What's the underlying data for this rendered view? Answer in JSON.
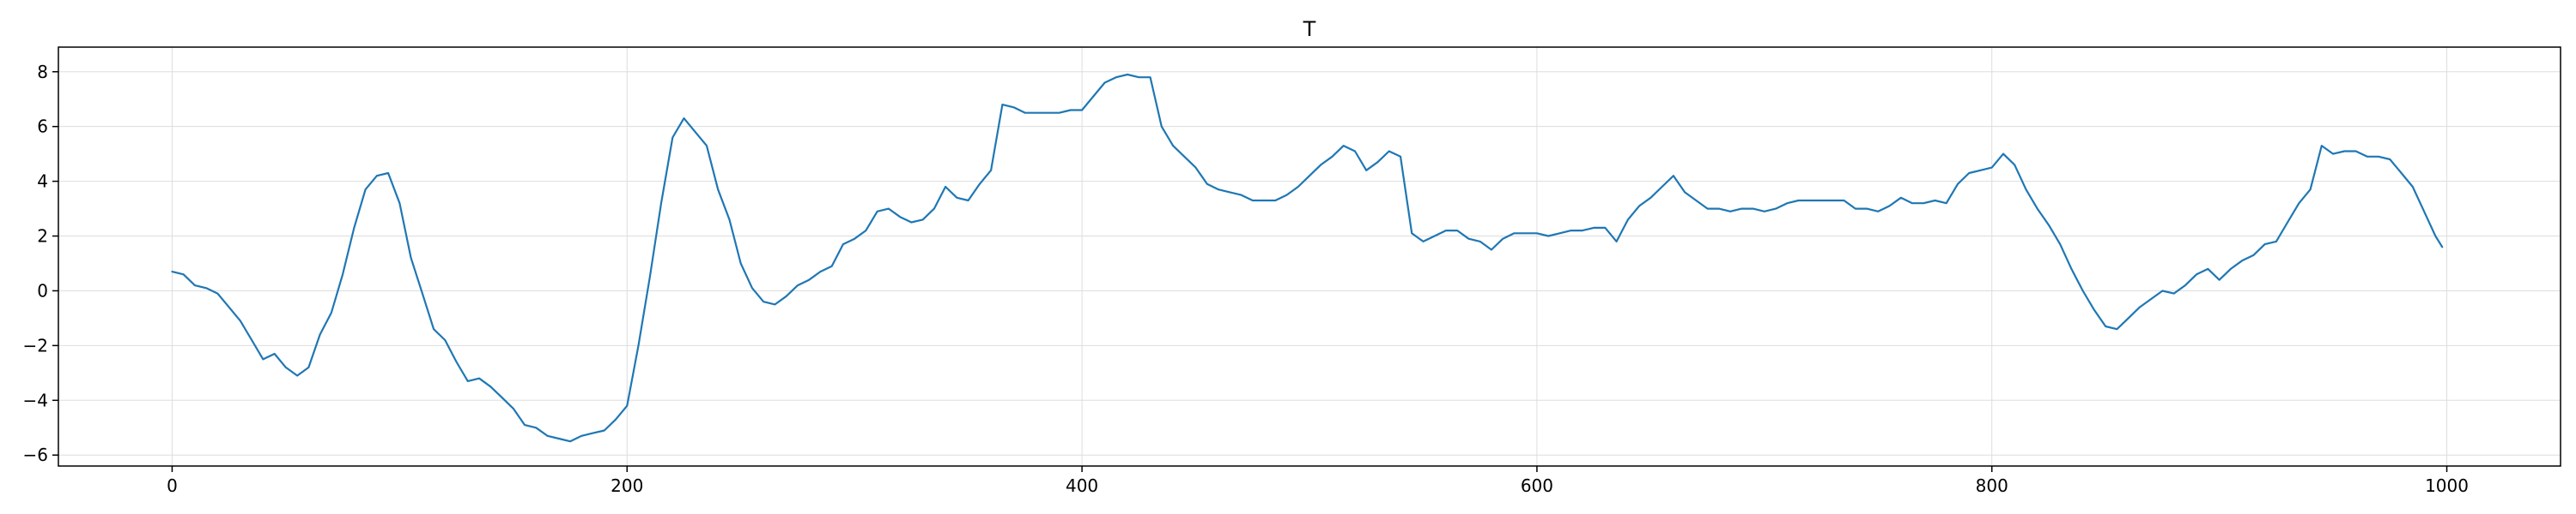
{
  "chart_data": {
    "type": "line",
    "title": "T",
    "xlabel": "",
    "ylabel": "",
    "xlim": [
      -50,
      1050
    ],
    "ylim": [
      -6.4,
      8.9
    ],
    "xticks": [
      0,
      200,
      400,
      600,
      800,
      1000
    ],
    "yticks": [
      -6,
      -4,
      -2,
      0,
      2,
      4,
      6,
      8
    ],
    "grid": true,
    "line_color": "#1f77b4",
    "series": [
      {
        "values": [
          [
            0,
            0.7
          ],
          [
            5,
            0.6
          ],
          [
            10,
            0.2
          ],
          [
            15,
            0.1
          ],
          [
            20,
            -0.1
          ],
          [
            25,
            -0.6
          ],
          [
            30,
            -1.1
          ],
          [
            35,
            -1.8
          ],
          [
            40,
            -2.5
          ],
          [
            45,
            -2.3
          ],
          [
            50,
            -2.8
          ],
          [
            55,
            -3.1
          ],
          [
            60,
            -2.8
          ],
          [
            65,
            -1.6
          ],
          [
            70,
            -0.8
          ],
          [
            75,
            0.6
          ],
          [
            80,
            2.3
          ],
          [
            85,
            3.7
          ],
          [
            90,
            4.2
          ],
          [
            95,
            4.3
          ],
          [
            100,
            3.2
          ],
          [
            105,
            1.2
          ],
          [
            110,
            -0.1
          ],
          [
            115,
            -1.4
          ],
          [
            120,
            -1.8
          ],
          [
            125,
            -2.6
          ],
          [
            130,
            -3.3
          ],
          [
            135,
            -3.2
          ],
          [
            140,
            -3.5
          ],
          [
            145,
            -3.9
          ],
          [
            150,
            -4.3
          ],
          [
            155,
            -4.9
          ],
          [
            160,
            -5.0
          ],
          [
            165,
            -5.3
          ],
          [
            170,
            -5.4
          ],
          [
            175,
            -5.5
          ],
          [
            180,
            -5.3
          ],
          [
            185,
            -5.2
          ],
          [
            190,
            -5.1
          ],
          [
            195,
            -4.7
          ],
          [
            200,
            -4.2
          ],
          [
            205,
            -2.0
          ],
          [
            210,
            0.5
          ],
          [
            215,
            3.2
          ],
          [
            220,
            5.6
          ],
          [
            225,
            6.3
          ],
          [
            230,
            5.8
          ],
          [
            235,
            5.3
          ],
          [
            240,
            3.7
          ],
          [
            245,
            2.6
          ],
          [
            250,
            1.0
          ],
          [
            255,
            0.1
          ],
          [
            260,
            -0.4
          ],
          [
            265,
            -0.5
          ],
          [
            270,
            -0.2
          ],
          [
            275,
            0.2
          ],
          [
            280,
            0.4
          ],
          [
            285,
            0.7
          ],
          [
            290,
            0.9
          ],
          [
            295,
            1.7
          ],
          [
            300,
            1.9
          ],
          [
            305,
            2.2
          ],
          [
            310,
            2.9
          ],
          [
            315,
            3.0
          ],
          [
            320,
            2.7
          ],
          [
            325,
            2.5
          ],
          [
            330,
            2.6
          ],
          [
            335,
            3.0
          ],
          [
            340,
            3.8
          ],
          [
            345,
            3.4
          ],
          [
            350,
            3.3
          ],
          [
            355,
            3.9
          ],
          [
            360,
            4.4
          ],
          [
            365,
            6.8
          ],
          [
            370,
            6.7
          ],
          [
            375,
            6.5
          ],
          [
            380,
            6.5
          ],
          [
            385,
            6.5
          ],
          [
            390,
            6.5
          ],
          [
            395,
            6.6
          ],
          [
            400,
            6.6
          ],
          [
            405,
            7.1
          ],
          [
            410,
            7.6
          ],
          [
            415,
            7.8
          ],
          [
            420,
            7.9
          ],
          [
            425,
            7.8
          ],
          [
            430,
            7.8
          ],
          [
            435,
            6.0
          ],
          [
            440,
            5.3
          ],
          [
            445,
            4.9
          ],
          [
            450,
            4.5
          ],
          [
            455,
            3.9
          ],
          [
            460,
            3.7
          ],
          [
            465,
            3.6
          ],
          [
            470,
            3.5
          ],
          [
            475,
            3.3
          ],
          [
            480,
            3.3
          ],
          [
            485,
            3.3
          ],
          [
            490,
            3.5
          ],
          [
            495,
            3.8
          ],
          [
            500,
            4.2
          ],
          [
            505,
            4.6
          ],
          [
            510,
            4.9
          ],
          [
            515,
            5.3
          ],
          [
            520,
            5.1
          ],
          [
            525,
            4.4
          ],
          [
            530,
            4.7
          ],
          [
            535,
            5.1
          ],
          [
            540,
            4.9
          ],
          [
            545,
            2.1
          ],
          [
            550,
            1.8
          ],
          [
            555,
            2.0
          ],
          [
            560,
            2.2
          ],
          [
            565,
            2.2
          ],
          [
            570,
            1.9
          ],
          [
            575,
            1.8
          ],
          [
            580,
            1.5
          ],
          [
            585,
            1.9
          ],
          [
            590,
            2.1
          ],
          [
            595,
            2.1
          ],
          [
            600,
            2.1
          ],
          [
            605,
            2.0
          ],
          [
            610,
            2.1
          ],
          [
            615,
            2.2
          ],
          [
            620,
            2.2
          ],
          [
            625,
            2.3
          ],
          [
            630,
            2.3
          ],
          [
            635,
            1.8
          ],
          [
            640,
            2.6
          ],
          [
            645,
            3.1
          ],
          [
            650,
            3.4
          ],
          [
            655,
            3.8
          ],
          [
            660,
            4.2
          ],
          [
            665,
            3.6
          ],
          [
            670,
            3.3
          ],
          [
            675,
            3.0
          ],
          [
            680,
            3.0
          ],
          [
            685,
            2.9
          ],
          [
            690,
            3.0
          ],
          [
            695,
            3.0
          ],
          [
            700,
            2.9
          ],
          [
            705,
            3.0
          ],
          [
            710,
            3.2
          ],
          [
            715,
            3.3
          ],
          [
            720,
            3.3
          ],
          [
            725,
            3.3
          ],
          [
            730,
            3.3
          ],
          [
            735,
            3.3
          ],
          [
            740,
            3.0
          ],
          [
            745,
            3.0
          ],
          [
            750,
            2.9
          ],
          [
            755,
            3.1
          ],
          [
            760,
            3.4
          ],
          [
            765,
            3.2
          ],
          [
            770,
            3.2
          ],
          [
            775,
            3.3
          ],
          [
            780,
            3.2
          ],
          [
            785,
            3.9
          ],
          [
            790,
            4.3
          ],
          [
            795,
            4.4
          ],
          [
            800,
            4.5
          ],
          [
            805,
            5.0
          ],
          [
            810,
            4.6
          ],
          [
            815,
            3.7
          ],
          [
            820,
            3.0
          ],
          [
            825,
            2.4
          ],
          [
            830,
            1.7
          ],
          [
            835,
            0.8
          ],
          [
            840,
            0.0
          ],
          [
            845,
            -0.7
          ],
          [
            850,
            -1.3
          ],
          [
            855,
            -1.4
          ],
          [
            860,
            -1.0
          ],
          [
            865,
            -0.6
          ],
          [
            870,
            -0.3
          ],
          [
            875,
            0.0
          ],
          [
            880,
            -0.1
          ],
          [
            885,
            0.2
          ],
          [
            890,
            0.6
          ],
          [
            895,
            0.8
          ],
          [
            900,
            0.4
          ],
          [
            905,
            0.8
          ],
          [
            910,
            1.1
          ],
          [
            915,
            1.3
          ],
          [
            920,
            1.7
          ],
          [
            925,
            1.8
          ],
          [
            930,
            2.5
          ],
          [
            935,
            3.2
          ],
          [
            940,
            3.7
          ],
          [
            945,
            5.3
          ],
          [
            950,
            5.0
          ],
          [
            955,
            5.1
          ],
          [
            960,
            5.1
          ],
          [
            965,
            4.9
          ],
          [
            970,
            4.9
          ],
          [
            975,
            4.8
          ],
          [
            980,
            4.3
          ],
          [
            985,
            3.8
          ],
          [
            990,
            2.9
          ],
          [
            995,
            2.0
          ],
          [
            998,
            1.6
          ]
        ]
      }
    ]
  }
}
